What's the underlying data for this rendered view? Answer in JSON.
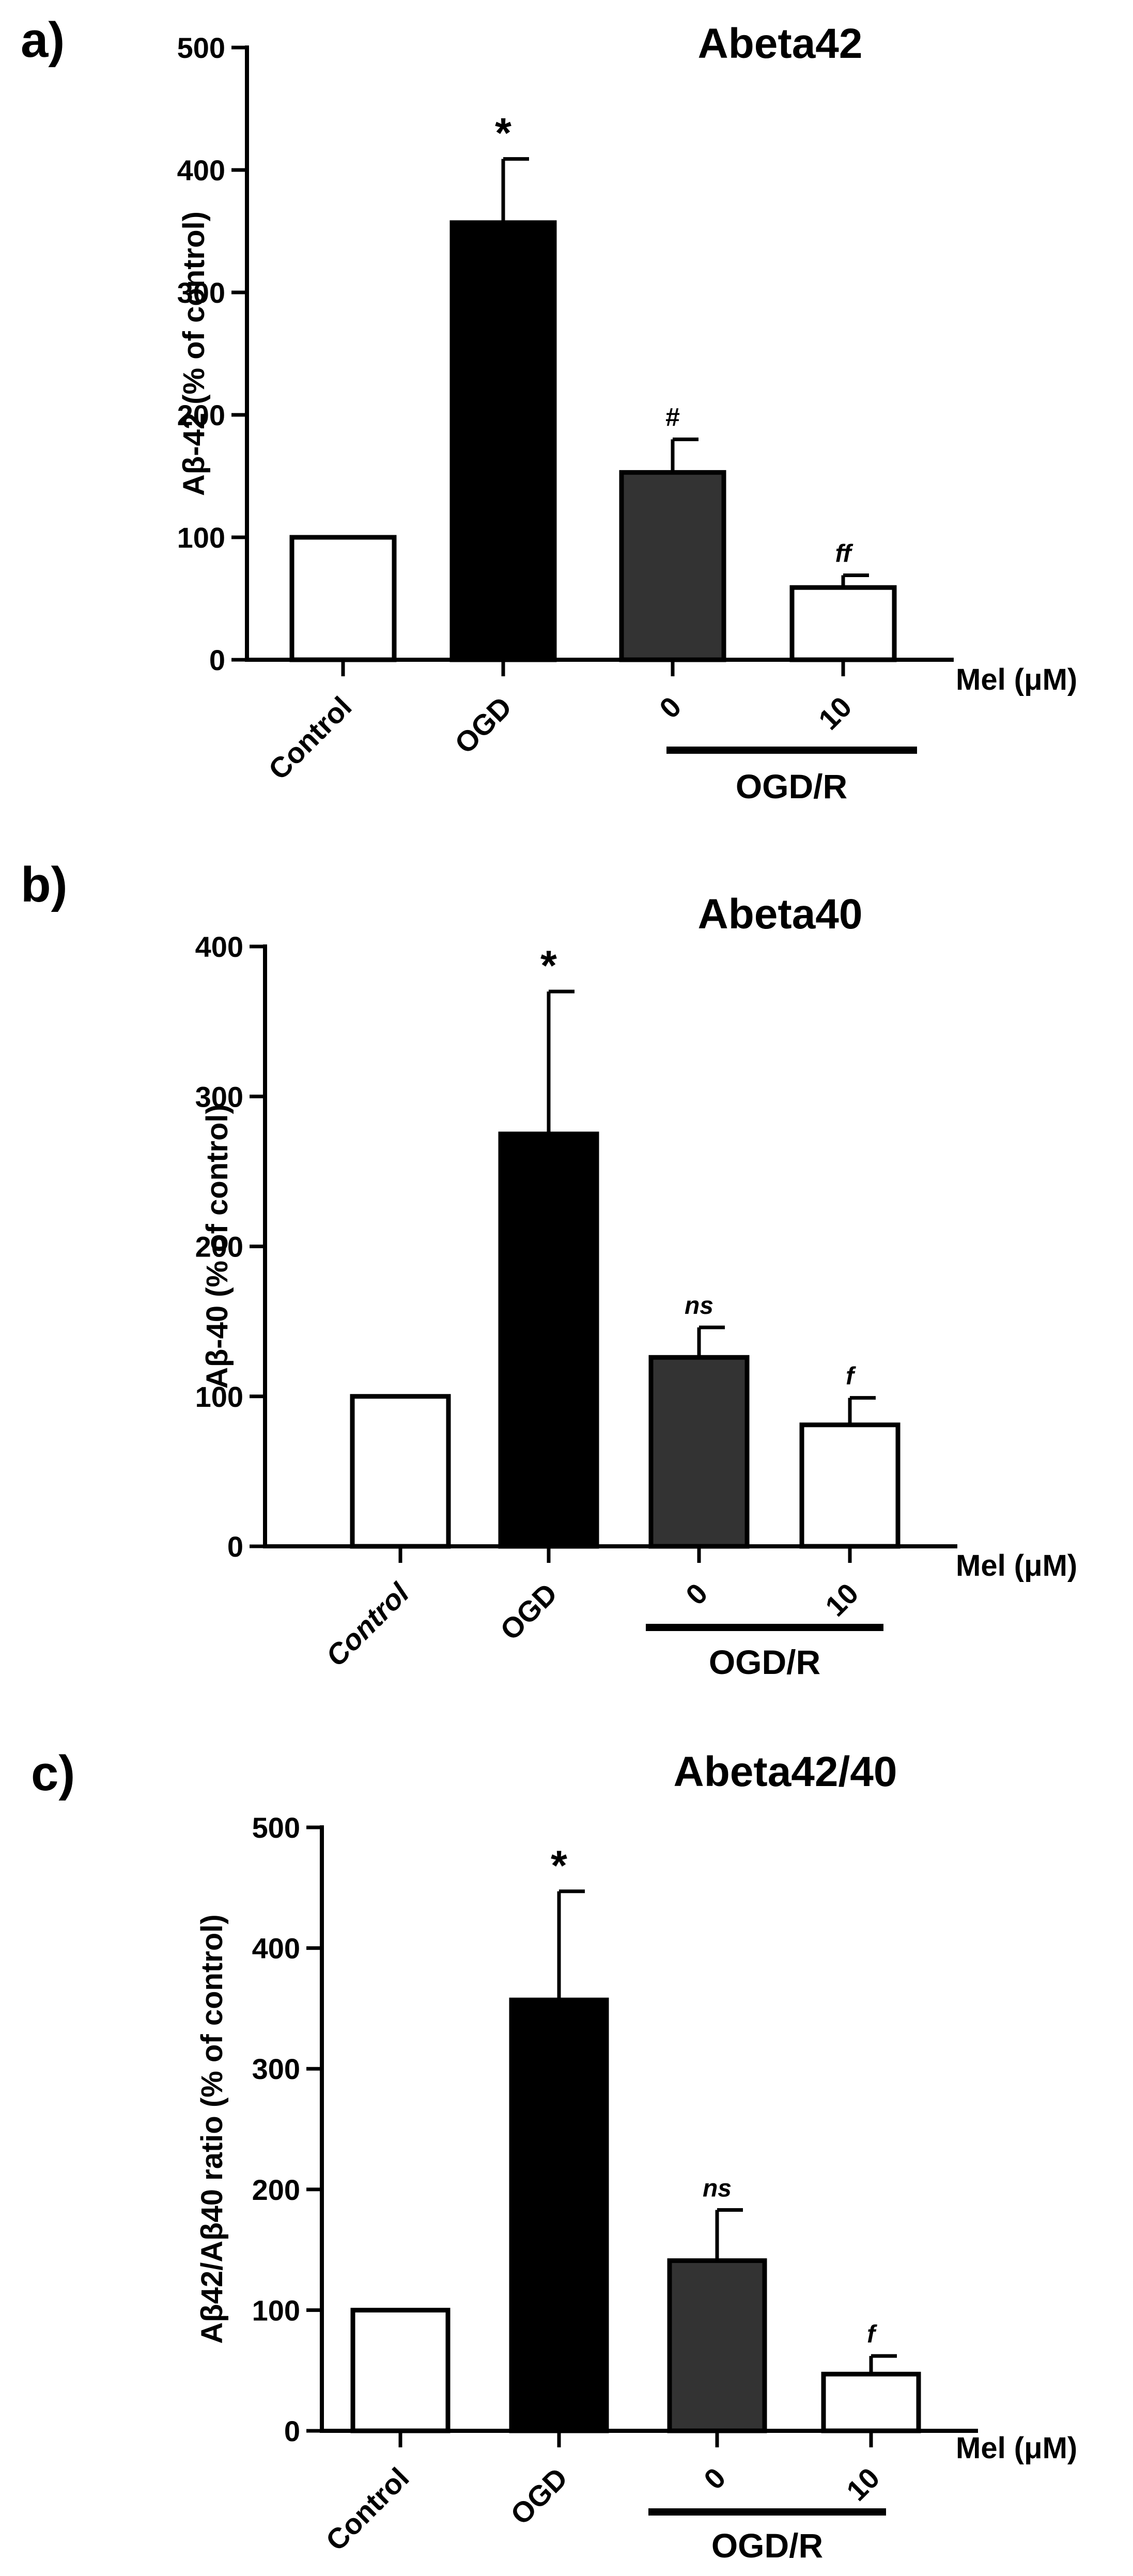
{
  "chart_data": [
    {
      "panel": "a)",
      "type": "bar",
      "title": "Abeta42",
      "ylabel": "Aβ-42 (% of control)",
      "ylim": [
        0,
        500
      ],
      "yticks": [
        0,
        100,
        200,
        300,
        400,
        500
      ],
      "categories": [
        "Control",
        "OGD",
        "0",
        "10"
      ],
      "values": [
        100,
        357,
        153,
        59
      ],
      "errors": [
        0,
        52,
        27,
        10
      ],
      "colors": [
        "#ffffff",
        "#000000",
        "#333333",
        "#ffffff"
      ],
      "significance": [
        "",
        "*",
        "#",
        "ff"
      ],
      "x_unit_label": "Mel (μM)",
      "group_label": "OGD/R",
      "control_italic": false
    },
    {
      "panel": "b)",
      "type": "bar",
      "title": "Abeta40",
      "ylabel": "Aβ-40 (% of control)",
      "ylim": [
        0,
        400
      ],
      "yticks": [
        0,
        100,
        200,
        300,
        400
      ],
      "categories": [
        "Control",
        "OGD",
        "0",
        "10"
      ],
      "values": [
        100,
        275,
        126,
        81
      ],
      "errors": [
        0,
        95,
        20,
        18
      ],
      "colors": [
        "#ffffff",
        "#000000",
        "#333333",
        "#ffffff"
      ],
      "significance": [
        "",
        "*",
        "ns",
        "f"
      ],
      "x_unit_label": "Mel (μM)",
      "group_label": "OGD/R",
      "control_italic": true
    },
    {
      "panel": "c)",
      "type": "bar",
      "title": "Abeta42/40",
      "ylabel": "Aβ42/Aβ40 ratio (% of control)",
      "ylim": [
        0,
        500
      ],
      "yticks": [
        0,
        100,
        200,
        300,
        400,
        500
      ],
      "categories": [
        "Control",
        "OGD",
        "0",
        "10"
      ],
      "values": [
        100,
        357,
        141,
        47
      ],
      "errors": [
        0,
        90,
        42,
        15
      ],
      "colors": [
        "#ffffff",
        "#000000",
        "#333333",
        "#ffffff"
      ],
      "significance": [
        "",
        "*",
        "ns",
        "f"
      ],
      "x_unit_label": "Mel (μM)",
      "group_label": "OGD/R",
      "control_italic": false
    }
  ]
}
